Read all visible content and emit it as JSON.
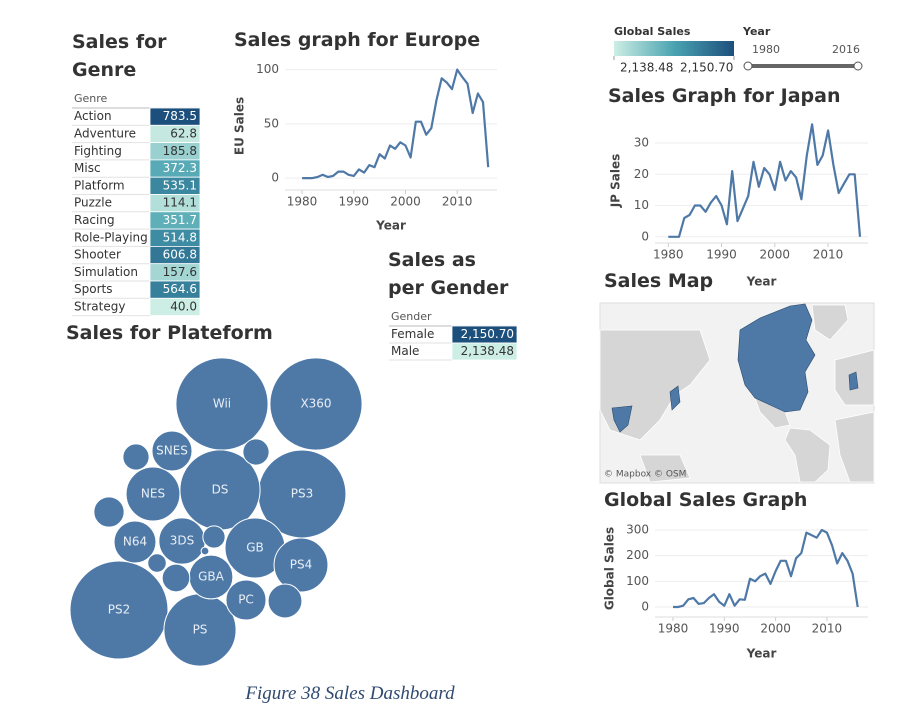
{
  "chart_data": [
    {
      "type": "table",
      "title": "Sales for Genre",
      "column_header": "Genre",
      "categories": [
        "Action",
        "Adventure",
        "Fighting",
        "Misc",
        "Platform",
        "Puzzle",
        "Racing",
        "Role-Playing",
        "Shooter",
        "Simulation",
        "Sports",
        "Strategy"
      ],
      "values": [
        783.5,
        62.8,
        185.8,
        372.3,
        535.1,
        114.1,
        351.7,
        514.8,
        606.8,
        157.6,
        564.6,
        40.0
      ],
      "value_labels": [
        "783.5",
        "62.8",
        "185.8",
        "372.3",
        "535.1",
        "114.1",
        "351.7",
        "514.8",
        "606.8",
        "157.6",
        "564.6",
        "40.0"
      ],
      "color_range": [
        "#cdeee4",
        "#4aa3b1",
        "#1d4f7d"
      ]
    },
    {
      "type": "line",
      "title": "Sales graph for Europe",
      "x_label": "Year",
      "y_label": "EU Sales",
      "color": "#4e79a7",
      "grid": true,
      "x": [
        1980,
        1981,
        1982,
        1983,
        1984,
        1985,
        1986,
        1987,
        1988,
        1989,
        1990,
        1991,
        1992,
        1993,
        1994,
        1995,
        1996,
        1997,
        1998,
        1999,
        2000,
        2001,
        2002,
        2003,
        2004,
        2005,
        2006,
        2007,
        2008,
        2009,
        2010,
        2011,
        2012,
        2013,
        2014,
        2015,
        2016
      ],
      "values": [
        0,
        0,
        0,
        1,
        3,
        1,
        2,
        6,
        6,
        3,
        2,
        8,
        5,
        12,
        10,
        22,
        18,
        30,
        27,
        33,
        30,
        19,
        52,
        52,
        40,
        46,
        72,
        92,
        88,
        82,
        100,
        93,
        87,
        60,
        78,
        70,
        10
      ],
      "xlim": [
        1976.7,
        2017.7
      ],
      "xticks": [
        1980,
        1990,
        2000,
        2010
      ],
      "ylim": [
        -11,
        107
      ],
      "yticks": [
        0,
        50,
        100
      ]
    },
    {
      "type": "table",
      "title": "Sales as per Gender",
      "column_header": "Gender",
      "categories": [
        "Female",
        "Male"
      ],
      "values": [
        2150.7,
        2138.48
      ],
      "value_labels": [
        "2,150.70",
        "2,138.48"
      ],
      "color_range": [
        "#cdeee4",
        "#4aa3b1",
        "#1d4f7d"
      ],
      "color_legend": {
        "title": "Global Sales",
        "values": [
          2138.48,
          2150.7
        ],
        "value_labels": [
          "2,138.48",
          "2,150.70"
        ]
      }
    },
    {
      "type": "bubble",
      "title": "Sales for Plateform",
      "color": "#4e79a7",
      "categories": [
        "PS2",
        "Wii",
        "X360",
        "PS3",
        "DS",
        "PS",
        "GB",
        "NES",
        "PS4",
        "3DS",
        "GBA",
        "N64",
        "PC",
        "SNES",
        null,
        null,
        null,
        null,
        null,
        null,
        null,
        null
      ],
      "values": [
        1255,
        1110,
        1110,
        1010,
        840,
        680,
        470,
        380,
        380,
        280,
        250,
        230,
        210,
        210,
        150,
        120,
        100,
        90,
        90,
        65,
        45,
        8
      ]
    },
    {
      "type": "line",
      "title": "Sales Graph for Japan",
      "x_label": "Year",
      "y_label": "JP Sales",
      "color": "#4e79a7",
      "grid": true,
      "x": [
        1980,
        1981,
        1982,
        1983,
        1984,
        1985,
        1986,
        1987,
        1988,
        1989,
        1990,
        1991,
        1992,
        1993,
        1994,
        1995,
        1996,
        1997,
        1998,
        1999,
        2000,
        2001,
        2002,
        2003,
        2004,
        2005,
        2006,
        2007,
        2008,
        2009,
        2010,
        2011,
        2012,
        2013,
        2014,
        2015,
        2016
      ],
      "values": [
        0,
        0,
        0,
        6,
        7,
        10,
        10,
        8,
        11,
        13,
        10,
        4,
        21,
        5,
        9,
        13,
        24,
        16,
        22,
        20,
        15,
        24,
        18,
        21,
        19,
        12,
        26,
        36,
        23,
        26,
        34,
        23,
        14,
        17,
        20,
        20,
        0
      ],
      "xlim": [
        1977.5,
        2017.5
      ],
      "xticks": [
        1980,
        1990,
        2000,
        2010
      ],
      "ylim": [
        -2,
        38
      ],
      "yticks": [
        0,
        10,
        20,
        30
      ]
    },
    {
      "type": "map",
      "title": "Sales Map",
      "attribution": "© Mapbox © OSM"
    },
    {
      "type": "line",
      "title": "Global Sales Graph",
      "x_label": "Year",
      "y_label": "Global Sales",
      "color": "#4e79a7",
      "grid": true,
      "x": [
        1980,
        1981,
        1982,
        1983,
        1984,
        1985,
        1986,
        1987,
        1988,
        1989,
        1990,
        1991,
        1992,
        1993,
        1994,
        1995,
        1996,
        1997,
        1998,
        1999,
        2000,
        2001,
        2002,
        2003,
        2004,
        2005,
        2006,
        2007,
        2008,
        2009,
        2010,
        2011,
        2012,
        2013,
        2014,
        2015,
        2016
      ],
      "values": [
        0,
        0,
        5,
        30,
        35,
        12,
        15,
        35,
        50,
        20,
        5,
        50,
        5,
        30,
        28,
        110,
        100,
        120,
        130,
        90,
        140,
        180,
        180,
        120,
        190,
        210,
        290,
        280,
        270,
        300,
        290,
        240,
        170,
        210,
        180,
        130,
        0
      ],
      "xlim": [
        1976.5,
        2018
      ],
      "xticks": [
        1980,
        1990,
        2000,
        2010
      ],
      "ylim": [
        -39,
        339
      ],
      "yticks": [
        0,
        100,
        200,
        300
      ]
    }
  ],
  "filters": [
    {
      "title": "Year",
      "range": [
        1980,
        2016
      ]
    }
  ],
  "caption": "Figure 38 Sales Dashboard"
}
